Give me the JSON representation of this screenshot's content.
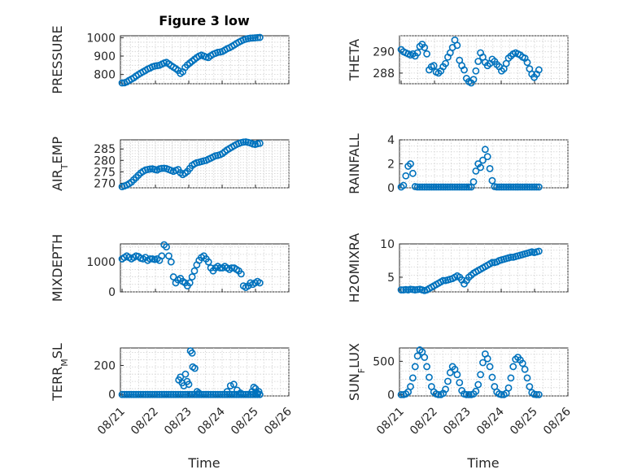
{
  "figure": {
    "title": "Figure 3 low",
    "marker_color": "#0072BD",
    "x_ticks": [
      "08/21",
      "08/22",
      "08/23",
      "08/24",
      "08/25",
      "08/26"
    ],
    "x_label": "Time"
  },
  "chart_data": [
    {
      "type": "scatter",
      "ylabel": "PRESSURE",
      "ylim": [
        750,
        1010
      ],
      "yticks": [
        800,
        900,
        1000
      ],
      "ytick_labels": [
        "800",
        "900",
        "1000"
      ],
      "x_days": [
        0.0,
        0.07,
        0.14,
        0.21,
        0.28,
        0.35,
        0.42,
        0.49,
        0.56,
        0.63,
        0.7,
        0.77,
        0.84,
        0.91,
        0.98,
        1.05,
        1.12,
        1.19,
        1.26,
        1.33,
        1.4,
        1.47,
        1.54,
        1.61,
        1.68,
        1.75,
        1.82,
        1.89,
        1.96,
        2.03,
        2.1,
        2.17,
        2.24,
        2.31,
        2.38,
        2.45,
        2.52,
        2.59,
        2.66,
        2.73,
        2.8,
        2.87,
        2.94,
        3.01,
        3.08,
        3.15,
        3.22,
        3.29,
        3.36,
        3.43,
        3.5,
        3.57,
        3.64,
        3.71,
        3.78,
        3.85,
        3.92,
        3.99,
        4.06,
        4.13
      ],
      "y": [
        752,
        755,
        760,
        768,
        775,
        782,
        792,
        800,
        808,
        815,
        822,
        830,
        835,
        842,
        846,
        848,
        850,
        856,
        862,
        866,
        858,
        848,
        840,
        832,
        822,
        806,
        815,
        838,
        852,
        862,
        872,
        882,
        892,
        900,
        905,
        900,
        895,
        892,
        902,
        910,
        915,
        920,
        922,
        925,
        932,
        940,
        945,
        952,
        960,
        968,
        975,
        982,
        988,
        992,
        995,
        997,
        998,
        999,
        1000,
        1001
      ]
    },
    {
      "type": "scatter",
      "ylabel": "THETA",
      "ylim": [
        287,
        291.5
      ],
      "yticks": [
        288,
        290
      ],
      "ytick_labels": [
        "288",
        "290"
      ],
      "x_days": [
        0.0,
        0.07,
        0.14,
        0.21,
        0.28,
        0.35,
        0.42,
        0.49,
        0.56,
        0.63,
        0.7,
        0.77,
        0.84,
        0.91,
        0.98,
        1.05,
        1.12,
        1.19,
        1.26,
        1.33,
        1.4,
        1.47,
        1.54,
        1.61,
        1.68,
        1.75,
        1.82,
        1.89,
        1.96,
        2.03,
        2.1,
        2.17,
        2.24,
        2.31,
        2.38,
        2.45,
        2.52,
        2.59,
        2.66,
        2.73,
        2.8,
        2.87,
        2.94,
        3.01,
        3.08,
        3.15,
        3.22,
        3.29,
        3.36,
        3.43,
        3.5,
        3.57,
        3.64,
        3.71,
        3.78,
        3.85,
        3.92,
        3.99,
        4.06,
        4.13
      ],
      "y": [
        290.2,
        290.0,
        289.9,
        289.8,
        289.7,
        289.8,
        289.6,
        289.9,
        290.5,
        290.7,
        290.4,
        289.8,
        288.3,
        288.6,
        288.7,
        288.1,
        288.0,
        288.2,
        288.6,
        288.9,
        289.5,
        289.9,
        290.4,
        291.1,
        290.6,
        289.2,
        288.7,
        288.3,
        287.5,
        287.2,
        287.0,
        287.4,
        288.2,
        289.1,
        289.9,
        289.5,
        289.0,
        288.7,
        288.9,
        289.3,
        289.1,
        288.8,
        288.6,
        288.2,
        288.4,
        288.9,
        289.4,
        289.6,
        289.8,
        289.9,
        289.8,
        289.7,
        289.5,
        289.4,
        289.0,
        288.4,
        287.9,
        287.6,
        287.9,
        288.3
      ]
    },
    {
      "type": "scatter",
      "ylabel": "AIR_TEMP",
      "ylim": [
        268,
        289
      ],
      "yticks": [
        270,
        275,
        280,
        285
      ],
      "ytick_labels": [
        "270",
        "275",
        "280",
        "285"
      ],
      "x_days": [
        0.0,
        0.07,
        0.14,
        0.21,
        0.28,
        0.35,
        0.42,
        0.49,
        0.56,
        0.63,
        0.7,
        0.77,
        0.84,
        0.91,
        0.98,
        1.05,
        1.12,
        1.19,
        1.26,
        1.33,
        1.4,
        1.47,
        1.54,
        1.61,
        1.68,
        1.75,
        1.82,
        1.89,
        1.96,
        2.03,
        2.1,
        2.17,
        2.24,
        2.31,
        2.38,
        2.45,
        2.52,
        2.59,
        2.66,
        2.73,
        2.8,
        2.87,
        2.94,
        3.01,
        3.08,
        3.15,
        3.22,
        3.29,
        3.36,
        3.43,
        3.5,
        3.57,
        3.64,
        3.71,
        3.78,
        3.85,
        3.92,
        3.99,
        4.06,
        4.13
      ],
      "y": [
        268.5,
        268.8,
        269.2,
        269.8,
        270.5,
        271.5,
        272.5,
        273.5,
        274.5,
        275.2,
        275.8,
        276.0,
        276.2,
        276.3,
        276.0,
        275.8,
        276.3,
        276.5,
        276.6,
        276.4,
        276.0,
        275.6,
        275.2,
        275.6,
        276.0,
        274.6,
        273.8,
        274.4,
        275.2,
        276.5,
        277.8,
        278.5,
        279.0,
        279.2,
        279.5,
        279.8,
        280.0,
        280.5,
        281.0,
        281.5,
        282.0,
        282.2,
        282.5,
        283.0,
        283.8,
        284.6,
        285.2,
        285.8,
        286.4,
        287.0,
        287.4,
        287.8,
        288.0,
        288.1,
        287.9,
        287.6,
        287.2,
        287.0,
        287.3,
        287.5
      ]
    },
    {
      "type": "scatter",
      "ylabel": "RAINFALL",
      "ylim": [
        0,
        4
      ],
      "yticks": [
        0,
        2,
        4
      ],
      "ytick_labels": [
        "0",
        "2",
        "4"
      ],
      "x_days": [
        0.0,
        0.07,
        0.14,
        0.21,
        0.28,
        0.35,
        0.42,
        0.49,
        0.56,
        0.63,
        0.7,
        0.77,
        0.84,
        0.91,
        0.98,
        1.05,
        1.12,
        1.19,
        1.26,
        1.33,
        1.4,
        1.47,
        1.54,
        1.61,
        1.68,
        1.75,
        1.82,
        1.89,
        1.96,
        2.03,
        2.1,
        2.17,
        2.24,
        2.31,
        2.38,
        2.45,
        2.52,
        2.59,
        2.66,
        2.73,
        2.8,
        2.87,
        2.94,
        3.01,
        3.08,
        3.15,
        3.22,
        3.29,
        3.36,
        3.43,
        3.5,
        3.57,
        3.64,
        3.71,
        3.78,
        3.85,
        3.92,
        3.99,
        4.06,
        4.13
      ],
      "y": [
        0,
        0.2,
        1.0,
        1.8,
        2.0,
        1.2,
        0.1,
        0,
        0,
        0,
        0,
        0,
        0,
        0,
        0,
        0,
        0,
        0,
        0,
        0,
        0,
        0,
        0,
        0,
        0,
        0,
        0,
        0,
        0,
        0,
        0,
        0.5,
        1.4,
        2.0,
        1.7,
        2.3,
        3.2,
        2.6,
        1.6,
        0.6,
        0.1,
        0,
        0,
        0,
        0,
        0,
        0,
        0,
        0,
        0,
        0,
        0,
        0,
        0,
        0,
        0,
        0,
        0,
        0,
        0
      ]
    },
    {
      "type": "scatter",
      "ylabel": "MIXDEPTH",
      "ylim": [
        0,
        1600
      ],
      "yticks": [
        0,
        1000
      ],
      "ytick_labels": [
        "0",
        "1000"
      ],
      "x_days": [
        0.0,
        0.07,
        0.14,
        0.21,
        0.28,
        0.35,
        0.42,
        0.49,
        0.56,
        0.63,
        0.7,
        0.77,
        0.84,
        0.91,
        0.98,
        1.05,
        1.12,
        1.19,
        1.26,
        1.33,
        1.4,
        1.47,
        1.54,
        1.61,
        1.68,
        1.75,
        1.82,
        1.89,
        1.96,
        2.03,
        2.1,
        2.17,
        2.24,
        2.31,
        2.38,
        2.45,
        2.52,
        2.59,
        2.66,
        2.73,
        2.8,
        2.87,
        2.94,
        3.01,
        3.08,
        3.15,
        3.22,
        3.29,
        3.36,
        3.43,
        3.5,
        3.57,
        3.64,
        3.71,
        3.78,
        3.85,
        3.92,
        3.99,
        4.06,
        4.13
      ],
      "y": [
        1100,
        1150,
        1200,
        1150,
        1100,
        1150,
        1200,
        1180,
        1120,
        1100,
        1150,
        1050,
        1100,
        1100,
        1080,
        1100,
        1050,
        1200,
        1600,
        1500,
        1200,
        1000,
        500,
        300,
        400,
        450,
        350,
        300,
        200,
        300,
        500,
        700,
        900,
        1050,
        1150,
        1200,
        1100,
        1000,
        800,
        700,
        800,
        850,
        800,
        800,
        850,
        800,
        750,
        800,
        800,
        750,
        700,
        600,
        200,
        150,
        200,
        300,
        250,
        300,
        350,
        300
      ]
    },
    {
      "type": "scatter",
      "ylabel": "H2OMIXRA",
      "ylim": [
        2.8,
        10
      ],
      "yticks": [
        5,
        10
      ],
      "ytick_labels": [
        "5",
        "10"
      ],
      "x_days": [
        0.0,
        0.07,
        0.14,
        0.21,
        0.28,
        0.35,
        0.42,
        0.49,
        0.56,
        0.63,
        0.7,
        0.77,
        0.84,
        0.91,
        0.98,
        1.05,
        1.12,
        1.19,
        1.26,
        1.33,
        1.4,
        1.47,
        1.54,
        1.61,
        1.68,
        1.75,
        1.82,
        1.89,
        1.96,
        2.03,
        2.1,
        2.17,
        2.24,
        2.31,
        2.38,
        2.45,
        2.52,
        2.59,
        2.66,
        2.73,
        2.8,
        2.87,
        2.94,
        3.01,
        3.08,
        3.15,
        3.22,
        3.29,
        3.36,
        3.43,
        3.5,
        3.57,
        3.64,
        3.71,
        3.78,
        3.85,
        3.92,
        3.99,
        4.06,
        4.13
      ],
      "y": [
        3.1,
        3.1,
        3.15,
        3.1,
        3.2,
        3.15,
        3.1,
        3.15,
        3.2,
        3.1,
        3.0,
        3.1,
        3.3,
        3.5,
        3.7,
        3.9,
        4.1,
        4.3,
        4.5,
        4.5,
        4.6,
        4.7,
        4.8,
        5.0,
        5.2,
        5.0,
        4.6,
        4.0,
        4.5,
        5.0,
        5.3,
        5.6,
        5.8,
        6.0,
        6.2,
        6.4,
        6.6,
        6.8,
        7.0,
        7.2,
        7.2,
        7.3,
        7.5,
        7.6,
        7.7,
        7.8,
        7.9,
        8.0,
        8.0,
        8.1,
        8.2,
        8.3,
        8.4,
        8.5,
        8.6,
        8.7,
        8.8,
        8.7,
        8.8,
        8.9
      ]
    },
    {
      "type": "scatter",
      "ylabel": "TERR_MSL",
      "ylim": [
        -10,
        320
      ],
      "yticks": [
        0,
        200
      ],
      "ytick_labels": [
        "0",
        "200"
      ],
      "x_days": [
        0.0,
        0.07,
        0.14,
        0.21,
        0.28,
        0.35,
        0.42,
        0.49,
        0.56,
        0.63,
        0.7,
        0.77,
        0.84,
        0.91,
        0.98,
        1.05,
        1.12,
        1.19,
        1.26,
        1.33,
        1.4,
        1.47,
        1.54,
        1.61,
        1.68,
        1.75,
        1.82,
        1.89,
        1.96,
        2.03,
        2.1,
        2.17,
        2.24,
        2.31,
        2.38,
        2.45,
        2.52,
        2.59,
        2.66,
        2.73,
        2.8,
        2.87,
        2.94,
        3.01,
        3.08,
        3.15,
        3.22,
        3.29,
        3.36,
        3.43,
        3.5,
        3.57,
        3.64,
        3.71,
        3.78,
        3.85,
        3.92,
        3.99,
        4.06,
        4.13
      ],
      "y": [
        0,
        0,
        0,
        0,
        0,
        0,
        0,
        0,
        0,
        0,
        0,
        0,
        0,
        0,
        0,
        0,
        0,
        0,
        0,
        0,
        0,
        0,
        0,
        0,
        0,
        0,
        0,
        0,
        0,
        0,
        0,
        0,
        0,
        0,
        0,
        0,
        0,
        0,
        0,
        0,
        0,
        0,
        0,
        0,
        0,
        0,
        0,
        0,
        0,
        0,
        0,
        0,
        0,
        0,
        0,
        0,
        0,
        0,
        0,
        0
      ],
      "extra_points": [
        {
          "x": 1.7,
          "y": 100
        },
        {
          "x": 1.75,
          "y": 120
        },
        {
          "x": 1.8,
          "y": 80
        },
        {
          "x": 1.85,
          "y": 60
        },
        {
          "x": 1.9,
          "y": 140
        },
        {
          "x": 1.95,
          "y": 90
        },
        {
          "x": 2.0,
          "y": 70
        },
        {
          "x": 2.05,
          "y": 300
        },
        {
          "x": 2.1,
          "y": 285
        },
        {
          "x": 2.12,
          "y": 190
        },
        {
          "x": 2.18,
          "y": 180
        },
        {
          "x": 2.25,
          "y": 20
        },
        {
          "x": 2.3,
          "y": 10
        },
        {
          "x": 3.15,
          "y": 20
        },
        {
          "x": 3.25,
          "y": 60
        },
        {
          "x": 3.35,
          "y": 70
        },
        {
          "x": 3.45,
          "y": 30
        },
        {
          "x": 3.55,
          "y": 10
        },
        {
          "x": 3.9,
          "y": 20
        },
        {
          "x": 3.95,
          "y": 50
        },
        {
          "x": 4.0,
          "y": 40
        },
        {
          "x": 4.05,
          "y": 10
        },
        {
          "x": 4.1,
          "y": 20
        }
      ]
    },
    {
      "type": "scatter",
      "ylabel": "SUN_FLUX",
      "ylim": [
        -20,
        700
      ],
      "yticks": [
        0,
        500
      ],
      "ytick_labels": [
        "0",
        "500"
      ],
      "x_days": [
        0.0,
        0.07,
        0.14,
        0.21,
        0.28,
        0.35,
        0.42,
        0.49,
        0.56,
        0.63,
        0.7,
        0.77,
        0.84,
        0.91,
        0.98,
        1.05,
        1.12,
        1.19,
        1.26,
        1.33,
        1.4,
        1.47,
        1.54,
        1.61,
        1.68,
        1.75,
        1.82,
        1.89,
        1.96,
        2.03,
        2.1,
        2.17,
        2.24,
        2.31,
        2.38,
        2.45,
        2.52,
        2.59,
        2.66,
        2.73,
        2.8,
        2.87,
        2.94,
        3.01,
        3.08,
        3.15,
        3.22,
        3.29,
        3.36,
        3.43,
        3.5,
        3.57,
        3.64,
        3.71,
        3.78,
        3.85,
        3.92,
        3.99,
        4.06,
        4.13
      ],
      "y": [
        0,
        0,
        10,
        40,
        120,
        250,
        420,
        580,
        670,
        640,
        560,
        420,
        260,
        120,
        40,
        10,
        0,
        0,
        20,
        80,
        200,
        330,
        420,
        380,
        300,
        180,
        60,
        10,
        0,
        0,
        0,
        10,
        50,
        150,
        300,
        480,
        610,
        540,
        420,
        260,
        120,
        40,
        10,
        0,
        0,
        20,
        100,
        250,
        420,
        530,
        560,
        520,
        470,
        380,
        250,
        120,
        30,
        5,
        0,
        0
      ]
    }
  ]
}
